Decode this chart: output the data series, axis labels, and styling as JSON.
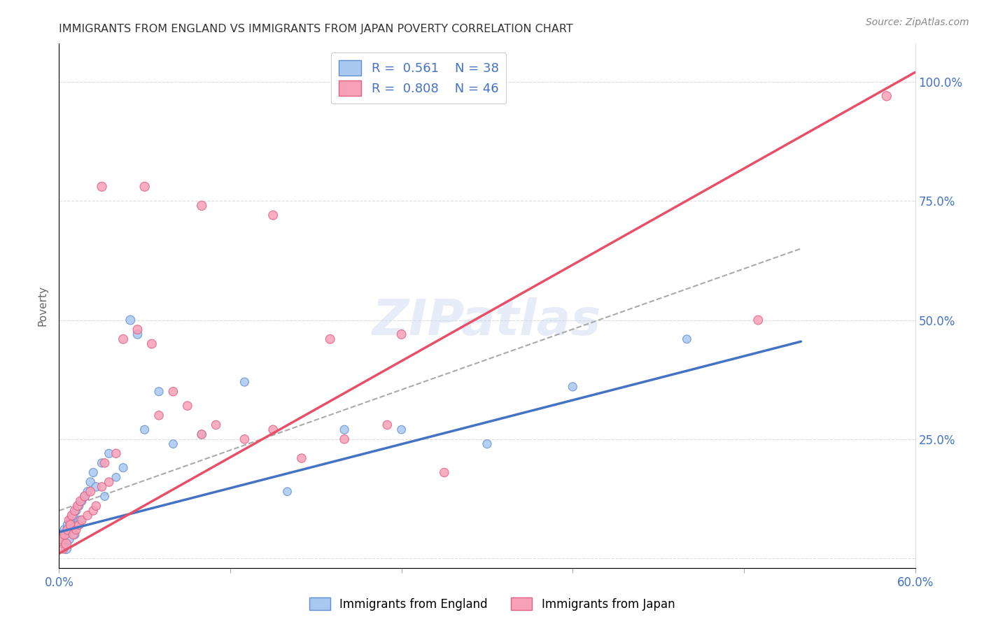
{
  "title": "IMMIGRANTS FROM ENGLAND VS IMMIGRANTS FROM JAPAN POVERTY CORRELATION CHART",
  "source": "Source: ZipAtlas.com",
  "ylabel": "Poverty",
  "xlim": [
    0.0,
    0.6
  ],
  "ylim": [
    -0.02,
    1.08
  ],
  "xticks": [
    0.0,
    0.12,
    0.24,
    0.36,
    0.48,
    0.6
  ],
  "xtick_labels": [
    "0.0%",
    "",
    "",
    "",
    "",
    "60.0%"
  ],
  "yticks": [
    0.0,
    0.25,
    0.5,
    0.75,
    1.0
  ],
  "ytick_labels_right": [
    "",
    "25.0%",
    "50.0%",
    "75.0%",
    "100.0%"
  ],
  "england_color": "#A8C8F0",
  "england_edge_color": "#6090D0",
  "japan_color": "#F8A0B8",
  "japan_edge_color": "#E06080",
  "england_scatter_x": [
    0.002,
    0.003,
    0.004,
    0.005,
    0.006,
    0.007,
    0.008,
    0.009,
    0.01,
    0.011,
    0.012,
    0.013,
    0.014,
    0.015,
    0.016,
    0.018,
    0.02,
    0.022,
    0.024,
    0.026,
    0.03,
    0.032,
    0.035,
    0.04,
    0.045,
    0.05,
    0.055,
    0.06,
    0.07,
    0.08,
    0.1,
    0.13,
    0.16,
    0.2,
    0.24,
    0.3,
    0.36,
    0.44
  ],
  "england_scatter_y": [
    0.05,
    0.03,
    0.06,
    0.02,
    0.07,
    0.04,
    0.08,
    0.06,
    0.09,
    0.05,
    0.1,
    0.07,
    0.11,
    0.08,
    0.12,
    0.13,
    0.14,
    0.16,
    0.18,
    0.15,
    0.2,
    0.13,
    0.22,
    0.17,
    0.19,
    0.5,
    0.47,
    0.27,
    0.35,
    0.24,
    0.26,
    0.37,
    0.14,
    0.27,
    0.27,
    0.24,
    0.36,
    0.46
  ],
  "england_scatter_sizes": [
    100,
    80,
    90,
    100,
    85,
    90,
    80,
    90,
    85,
    80,
    75,
    80,
    75,
    80,
    75,
    80,
    75,
    80,
    75,
    80,
    75,
    70,
    75,
    70,
    75,
    85,
    80,
    75,
    75,
    70,
    75,
    75,
    70,
    75,
    70,
    75,
    75,
    70
  ],
  "japan_scatter_x": [
    0.002,
    0.003,
    0.004,
    0.005,
    0.006,
    0.007,
    0.008,
    0.009,
    0.01,
    0.011,
    0.012,
    0.013,
    0.014,
    0.015,
    0.016,
    0.018,
    0.02,
    0.022,
    0.024,
    0.026,
    0.03,
    0.032,
    0.035,
    0.04,
    0.045,
    0.055,
    0.065,
    0.07,
    0.08,
    0.09,
    0.1,
    0.11,
    0.13,
    0.15,
    0.17,
    0.2,
    0.23,
    0.27,
    0.03,
    0.06,
    0.1,
    0.15,
    0.19,
    0.24,
    0.49,
    0.58
  ],
  "japan_scatter_y": [
    0.04,
    0.02,
    0.05,
    0.03,
    0.06,
    0.08,
    0.07,
    0.09,
    0.05,
    0.1,
    0.06,
    0.11,
    0.07,
    0.12,
    0.08,
    0.13,
    0.09,
    0.14,
    0.1,
    0.11,
    0.15,
    0.2,
    0.16,
    0.22,
    0.46,
    0.48,
    0.45,
    0.3,
    0.35,
    0.32,
    0.26,
    0.28,
    0.25,
    0.27,
    0.21,
    0.25,
    0.28,
    0.18,
    0.78,
    0.78,
    0.74,
    0.72,
    0.46,
    0.47,
    0.5,
    0.97
  ],
  "japan_scatter_sizes": [
    100,
    85,
    95,
    100,
    90,
    85,
    90,
    85,
    90,
    85,
    80,
    85,
    80,
    85,
    80,
    85,
    80,
    85,
    80,
    80,
    80,
    80,
    80,
    80,
    85,
    85,
    85,
    80,
    80,
    80,
    80,
    80,
    80,
    80,
    80,
    80,
    80,
    80,
    90,
    90,
    90,
    85,
    85,
    85,
    85,
    90
  ],
  "england_line_x": [
    0.0,
    0.52
  ],
  "england_line_y": [
    0.055,
    0.455
  ],
  "japan_line_x": [
    0.0,
    0.6
  ],
  "japan_line_y": [
    0.01,
    1.02
  ],
  "dashed_line_x": [
    0.0,
    0.52
  ],
  "dashed_line_y": [
    0.1,
    0.65
  ],
  "england_line_color": "#4472C4",
  "japan_line_color": "#E8506A",
  "dashed_line_color": "#AAAAAA",
  "R_england": "0.561",
  "N_england": "38",
  "R_japan": "0.808",
  "N_japan": "46",
  "legend_england": "Immigrants from England",
  "legend_japan": "Immigrants from Japan",
  "watermark": "ZIPatlas"
}
